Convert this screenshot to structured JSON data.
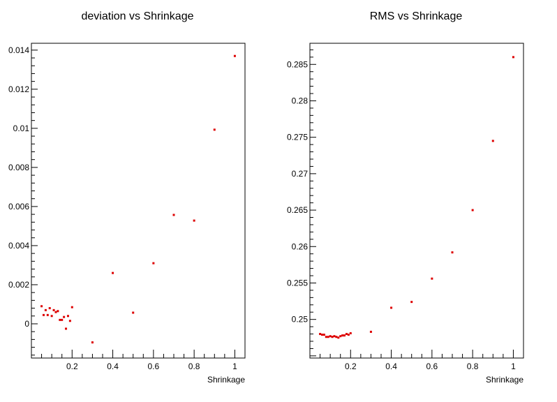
{
  "chart_data": [
    {
      "type": "scatter",
      "title": "deviation vs Shrinkage",
      "xlabel": "Shrinkage",
      "ylabel": "",
      "xlim": [
        0,
        1.05
      ],
      "ylim": [
        -0.00175,
        0.01435
      ],
      "x_ticks": [
        0.2,
        0.4,
        0.6,
        0.8,
        1
      ],
      "x_tick_labels": [
        "0.2",
        "0.4",
        "0.6",
        "0.8",
        "1"
      ],
      "y_ticks": [
        0,
        0.002,
        0.004,
        0.006,
        0.008,
        0.01,
        0.012,
        0.014
      ],
      "y_tick_labels": [
        "0",
        "0.002",
        "0.004",
        "0.006",
        "0.008",
        "0.01",
        "0.012",
        "0.014"
      ],
      "marker_color": "#dd0000",
      "points": [
        {
          "x": 0.05,
          "y": 0.0009
        },
        {
          "x": 0.06,
          "y": 0.00045
        },
        {
          "x": 0.07,
          "y": 0.0007
        },
        {
          "x": 0.08,
          "y": 0.00045
        },
        {
          "x": 0.09,
          "y": 0.0008
        },
        {
          "x": 0.1,
          "y": 0.0004
        },
        {
          "x": 0.11,
          "y": 0.0007
        },
        {
          "x": 0.12,
          "y": 0.0006
        },
        {
          "x": 0.13,
          "y": 0.00065
        },
        {
          "x": 0.14,
          "y": 0.0002
        },
        {
          "x": 0.15,
          "y": 0.0002
        },
        {
          "x": 0.16,
          "y": 0.00035
        },
        {
          "x": 0.17,
          "y": -0.00025
        },
        {
          "x": 0.18,
          "y": 0.0004
        },
        {
          "x": 0.19,
          "y": 0.00015
        },
        {
          "x": 0.2,
          "y": 0.00085
        },
        {
          "x": 0.3,
          "y": -0.00095
        },
        {
          "x": 0.4,
          "y": 0.0026
        },
        {
          "x": 0.5,
          "y": 0.00057
        },
        {
          "x": 0.6,
          "y": 0.0031
        },
        {
          "x": 0.7,
          "y": 0.00557
        },
        {
          "x": 0.8,
          "y": 0.00528
        },
        {
          "x": 0.9,
          "y": 0.00993
        },
        {
          "x": 1.0,
          "y": 0.0137
        }
      ]
    },
    {
      "type": "scatter",
      "title": "RMS vs Shrinkage",
      "xlabel": "Shrinkage",
      "ylabel": "",
      "xlim": [
        0,
        1.05
      ],
      "ylim": [
        0.2447,
        0.2879
      ],
      "x_ticks": [
        0.2,
        0.4,
        0.6,
        0.8,
        1
      ],
      "x_tick_labels": [
        "0.2",
        "0.4",
        "0.6",
        "0.8",
        "1"
      ],
      "y_ticks": [
        0.25,
        0.255,
        0.26,
        0.265,
        0.27,
        0.275,
        0.28,
        0.285
      ],
      "y_tick_labels": [
        "0.25",
        "0.255",
        "0.26",
        "0.265",
        "0.27",
        "0.275",
        "0.28",
        "0.285"
      ],
      "marker_color": "#dd0000",
      "points": [
        {
          "x": 0.05,
          "y": 0.248
        },
        {
          "x": 0.06,
          "y": 0.2479
        },
        {
          "x": 0.07,
          "y": 0.2479
        },
        {
          "x": 0.08,
          "y": 0.2476
        },
        {
          "x": 0.09,
          "y": 0.2476
        },
        {
          "x": 0.1,
          "y": 0.2477
        },
        {
          "x": 0.11,
          "y": 0.2476
        },
        {
          "x": 0.12,
          "y": 0.2477
        },
        {
          "x": 0.13,
          "y": 0.2476
        },
        {
          "x": 0.14,
          "y": 0.2475
        },
        {
          "x": 0.15,
          "y": 0.2477
        },
        {
          "x": 0.16,
          "y": 0.2478
        },
        {
          "x": 0.17,
          "y": 0.2478
        },
        {
          "x": 0.18,
          "y": 0.248
        },
        {
          "x": 0.19,
          "y": 0.2479
        },
        {
          "x": 0.2,
          "y": 0.2481
        },
        {
          "x": 0.3,
          "y": 0.2483
        },
        {
          "x": 0.4,
          "y": 0.2516
        },
        {
          "x": 0.5,
          "y": 0.2524
        },
        {
          "x": 0.6,
          "y": 0.2556
        },
        {
          "x": 0.7,
          "y": 0.2592
        },
        {
          "x": 0.8,
          "y": 0.265
        },
        {
          "x": 0.9,
          "y": 0.2745
        },
        {
          "x": 1.0,
          "y": 0.286
        }
      ]
    }
  ]
}
